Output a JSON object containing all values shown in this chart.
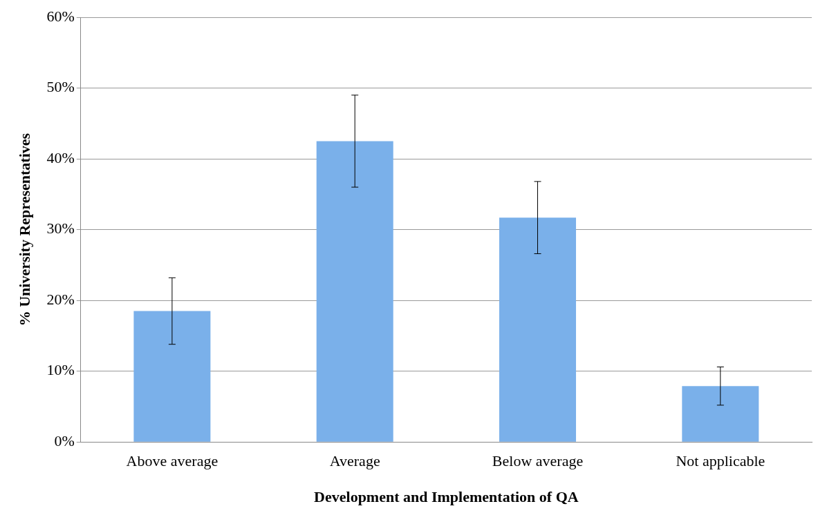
{
  "chart_data": {
    "type": "bar",
    "xlabel": "Development and Implementation of QA",
    "ylabel": "% University Representatives",
    "categories": [
      "Above average",
      "Average",
      "Below average",
      "Not applicable"
    ],
    "series": [
      {
        "color": "#7ab0ea",
        "values": [
          18.5,
          42.5,
          31.7,
          7.9
        ],
        "errors": [
          4.7,
          6.5,
          5.1,
          2.7
        ]
      }
    ],
    "ylim": [
      0,
      60
    ],
    "yticks": [
      {
        "value": 0,
        "label": "0%"
      },
      {
        "value": 10,
        "label": "10%"
      },
      {
        "value": 20,
        "label": "20%"
      },
      {
        "value": 30,
        "label": "30%"
      },
      {
        "value": 40,
        "label": "40%"
      },
      {
        "value": 50,
        "label": "50%"
      },
      {
        "value": 60,
        "label": "60%"
      }
    ],
    "grid": "y",
    "legend": false
  }
}
